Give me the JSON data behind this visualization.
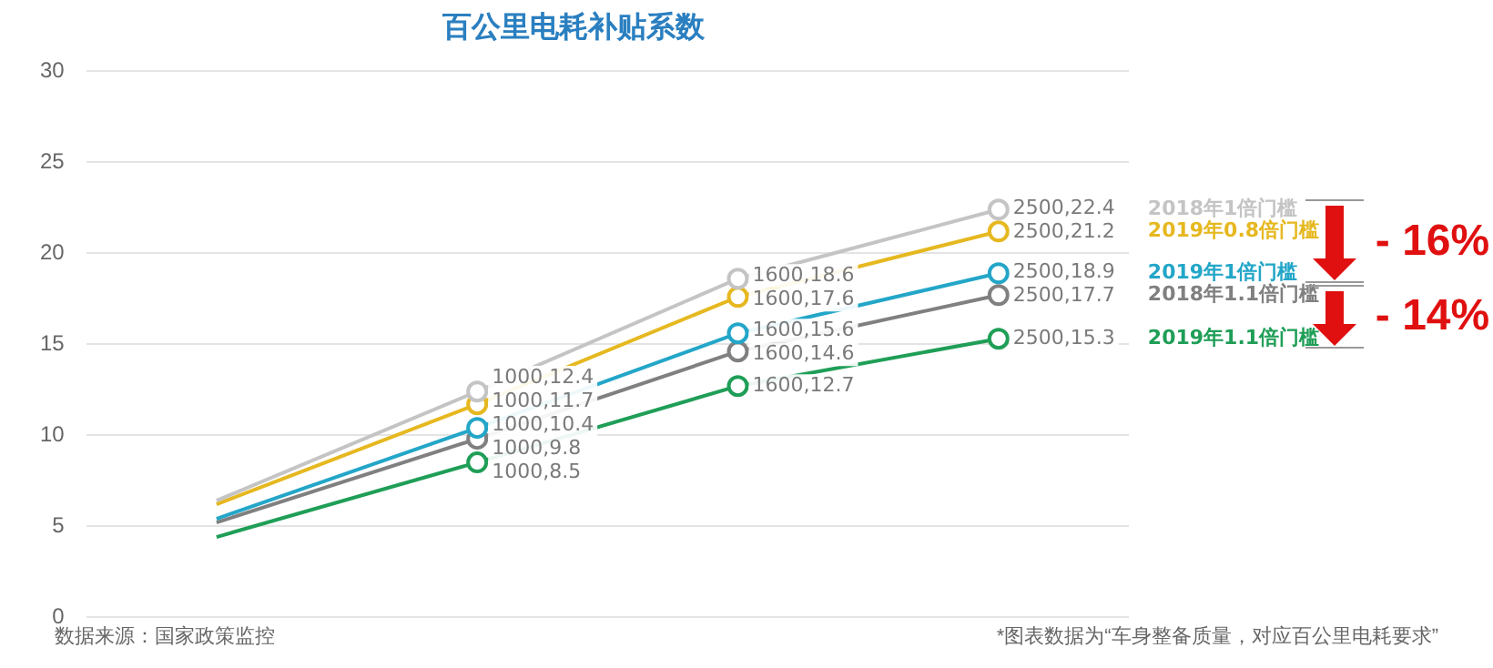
{
  "chart_data": {
    "type": "line",
    "title": "百公里电耗补贴系数",
    "categories": [
      null,
      null,
      null,
      null
    ],
    "series": [
      {
        "name": "2018年1倍门槛",
        "color": "#c4c4c4",
        "values": [
          6.4,
          12.4,
          18.6,
          22.4
        ],
        "value_labels": [
          null,
          "1000,12.4",
          "1600,18.6",
          "2500,22.4"
        ]
      },
      {
        "name": "2019年0.8倍门槛",
        "color": "#e6b820",
        "values": [
          6.2,
          11.7,
          17.6,
          21.2
        ],
        "value_labels": [
          null,
          "1000,11.7",
          "1600,17.6",
          "2500,21.2"
        ]
      },
      {
        "name": "2019年1倍门槛",
        "color": "#23a6c8",
        "values": [
          5.4,
          10.4,
          15.6,
          18.9
        ],
        "value_labels": [
          null,
          "1000,10.4",
          "1600,15.6",
          "2500,18.9"
        ]
      },
      {
        "name": "2018年1.1倍门槛",
        "color": "#808080",
        "values": [
          5.2,
          9.8,
          14.6,
          17.7
        ],
        "value_labels": [
          null,
          "1000,9.8",
          "1600,14.6",
          "2500,17.7"
        ]
      },
      {
        "name": "2019年1.1倍门槛",
        "color": "#1f9e57",
        "values": [
          4.4,
          8.5,
          12.7,
          15.3
        ],
        "value_labels": [
          null,
          "1000,8.5",
          "1600,12.7",
          "2500,15.3"
        ]
      }
    ],
    "ylim": [
      0,
      30
    ],
    "yticks": [
      0,
      5,
      10,
      15,
      20,
      25,
      30
    ],
    "grid": "y",
    "legend": false,
    "marker": "circle",
    "line_style": "solid",
    "annotations": [
      "- 16%",
      "- 14%",
      "数据来源：国家政策监控",
      "*图表数据为“车身整备质量，对应百公里电耗要求”"
    ]
  }
}
